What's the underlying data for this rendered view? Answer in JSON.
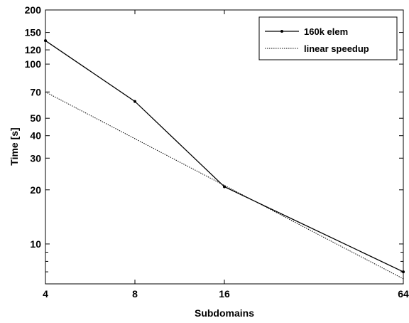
{
  "chart_data": {
    "type": "line",
    "xlabel": "Subdomains",
    "ylabel": "Time [s]",
    "x_scale": "log2",
    "y_scale": "log10",
    "xlim": [
      4,
      64
    ],
    "ylim": [
      6,
      200
    ],
    "x_ticks": [
      4,
      8,
      16,
      64
    ],
    "y_ticks": [
      10,
      20,
      30,
      40,
      50,
      70,
      100,
      120,
      150,
      200
    ],
    "grid": false,
    "legend_position": "top-right",
    "series": [
      {
        "name": "160k elem",
        "style": "solid-with-dots",
        "color": "#000000",
        "x": [
          4,
          8,
          16,
          64
        ],
        "y": [
          135,
          62,
          20.8,
          7.0
        ]
      },
      {
        "name": "linear speedup",
        "style": "dotted",
        "color": "#000000",
        "x": [
          4,
          64
        ],
        "y": [
          70,
          6.4
        ]
      }
    ]
  }
}
